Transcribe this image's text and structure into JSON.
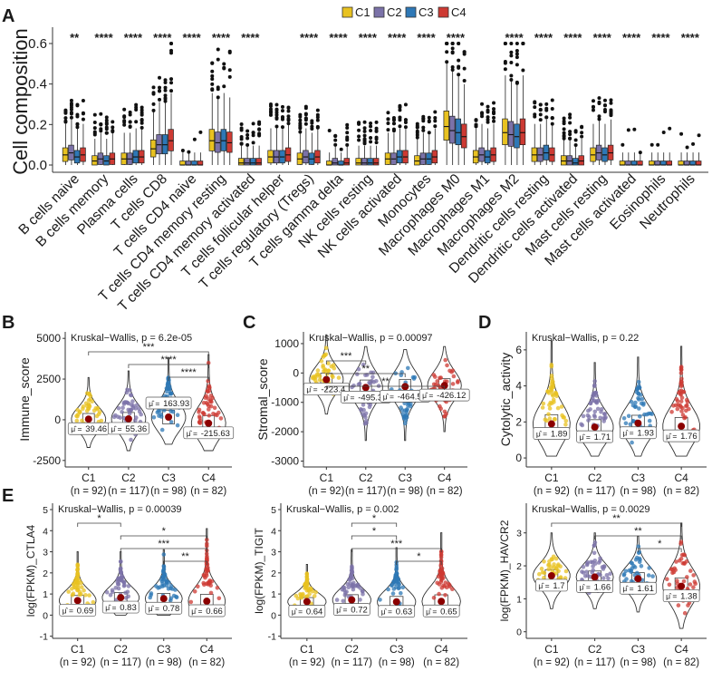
{
  "colors": {
    "C1": "#E8C220",
    "C2": "#7B72A8",
    "C3": "#2E78B6",
    "C4": "#CD3A33"
  },
  "chart_data": [
    {
      "panel": "A",
      "type": "box",
      "ylabel": "Cell composition",
      "ylim": [
        0,
        0.65
      ],
      "yticks": [
        "0.0",
        "0.2",
        "0.4",
        "0.6"
      ],
      "ytick_values": [
        0,
        0.2,
        0.4,
        0.6
      ],
      "legend": [
        "C1",
        "C2",
        "C3",
        "C4"
      ],
      "categories": [
        "B cells naive",
        "B cells memory",
        "Plasma cells",
        "T cells CD8",
        "T cells CD4 naive",
        "T cells CD4 memory resting",
        "T cells CD4 memory activated",
        "T cells follicular helper",
        "T cells regulatory (Tregs)",
        "T cells gamma delta",
        "NK cells resting",
        "NK cells activated",
        "Monocytes",
        "Macrophages M0",
        "Macrophages M1",
        "Macrophages M2",
        "Dendritic cells resting",
        "Dendritic cells activated",
        "Mast cells resting",
        "Mast cells activated",
        "Eosinophils",
        "Neutrophils"
      ],
      "significance": [
        "**",
        "****",
        "****",
        "****",
        "****",
        "****",
        "****",
        "",
        "****",
        "****",
        "****",
        "****",
        "****",
        "****",
        "",
        "****",
        "****",
        "****",
        "****",
        "****",
        "****",
        "****"
      ],
      "medians": [
        [
          0.05,
          0.06,
          0.04,
          0.05
        ],
        [
          0.02,
          0.03,
          0.02,
          0.03
        ],
        [
          0.03,
          0.03,
          0.04,
          0.04
        ],
        [
          0.08,
          0.1,
          0.1,
          0.12
        ],
        [
          0,
          0,
          0,
          0
        ],
        [
          0.12,
          0.11,
          0.12,
          0.11
        ],
        [
          0.01,
          0.01,
          0.01,
          0.01
        ],
        [
          0.04,
          0.04,
          0.04,
          0.05
        ],
        [
          0.03,
          0.04,
          0.03,
          0.04
        ],
        [
          0,
          0.01,
          0,
          0.01
        ],
        [
          0.01,
          0.01,
          0.01,
          0.01
        ],
        [
          0.03,
          0.03,
          0.04,
          0.04
        ],
        [
          0.02,
          0.03,
          0.03,
          0.04
        ],
        [
          0.19,
          0.17,
          0.16,
          0.14
        ],
        [
          0.04,
          0.05,
          0.04,
          0.05
        ],
        [
          0.16,
          0.15,
          0.14,
          0.16
        ],
        [
          0.05,
          0.05,
          0.06,
          0.05
        ],
        [
          0.02,
          0.02,
          0.01,
          0.02
        ],
        [
          0.05,
          0.06,
          0.05,
          0.06
        ],
        [
          0,
          0,
          0,
          0
        ],
        [
          0,
          0,
          0,
          0
        ],
        [
          0,
          0,
          0,
          0
        ]
      ]
    },
    {
      "panel": "B",
      "type": "violin",
      "ylabel": "Immune_score",
      "ylim": [
        -2900,
        5400
      ],
      "yticks": [
        -2500,
        0,
        2500,
        5000
      ],
      "kruskal": "Kruskal−Wallis, p = 6.2e-05",
      "groups": [
        "C1",
        "C2",
        "C3",
        "C4"
      ],
      "counts": [
        "(n = 92)",
        "(n = 117)",
        "(n = 98)",
        "(n = 82)"
      ],
      "means": [
        39.46,
        55.36,
        163.93,
        -215.63
      ],
      "mean_labels": [
        "39.46",
        "55.36",
        "163.93",
        "-215.63"
      ],
      "brackets": [
        {
          "from": 1,
          "to": 4,
          "label": "***"
        },
        {
          "from": 2,
          "to": 4,
          "label": "****"
        },
        {
          "from": 3,
          "to": 4,
          "label": "****"
        }
      ],
      "range": [
        [
          -1700,
          2600
        ],
        [
          -1900,
          3000
        ],
        [
          -1500,
          3800
        ],
        [
          -1900,
          4000
        ]
      ]
    },
    {
      "panel": "C",
      "type": "violin",
      "ylabel": "Stromal_score",
      "ylim": [
        -3200,
        1400
      ],
      "yticks": [
        -3000,
        -2000,
        -1000,
        0,
        1000
      ],
      "kruskal": "Kruskal−Wallis, p = 0.00097",
      "groups": [
        "C1",
        "C2",
        "C3",
        "C4"
      ],
      "counts": [
        "(n = 92)",
        "(n = 117)",
        "(n = 98)",
        "(n = 82)"
      ],
      "means": [
        -223.4,
        -495.33,
        -464.54,
        -426.12
      ],
      "mean_labels": [
        "-223.4",
        "-495.33",
        "-464.54",
        "-426.12"
      ],
      "brackets": [
        {
          "from": 1,
          "to": 2,
          "label": "***"
        },
        {
          "from": 1,
          "to": 3,
          "label": "**"
        },
        {
          "from": 1,
          "to": 4,
          "label": "**"
        }
      ],
      "range": [
        [
          -1400,
          1300
        ],
        [
          -2300,
          900
        ],
        [
          -2300,
          800
        ],
        [
          -2000,
          900
        ]
      ]
    },
    {
      "panel": "D",
      "type": "violin",
      "ylabel": "Cytolytic_activity",
      "ylim": [
        -0.5,
        7.0
      ],
      "yticks": [
        0,
        2,
        4,
        6
      ],
      "kruskal": "Kruskal−Wallis, p = 0.22",
      "groups": [
        "C1",
        "C2",
        "C3",
        "C4"
      ],
      "counts": [
        "(n = 92)",
        "(n = 117)",
        "(n = 98)",
        "(n = 82)"
      ],
      "means": [
        1.89,
        1.71,
        1.93,
        1.76
      ],
      "mean_labels": [
        "1.89",
        "1.71",
        "1.93",
        "1.76"
      ],
      "brackets": [],
      "range": [
        [
          0.1,
          6.5
        ],
        [
          0.1,
          5.3
        ],
        [
          0.1,
          5.6
        ],
        [
          0.1,
          6.2
        ]
      ]
    },
    {
      "panel": "E1",
      "type": "violin",
      "ylabel": "log(FPKM)_CTLA4",
      "ylim": [
        -1.1,
        5.3
      ],
      "yticks": [
        -1,
        0,
        1,
        2,
        3,
        4,
        5
      ],
      "kruskal": "Kruskal−Wallis, p = 0.00039",
      "groups": [
        "C1",
        "C2",
        "C3",
        "C4"
      ],
      "counts": [
        "(n = 92)",
        "(n = 117)",
        "(n = 98)",
        "(n = 82)"
      ],
      "means": [
        0.69,
        0.83,
        0.78,
        0.66
      ],
      "mean_labels": [
        "0.69",
        "0.83",
        "0.78",
        "0.66"
      ],
      "brackets": [
        {
          "from": 1,
          "to": 2,
          "label": "*"
        },
        {
          "from": 2,
          "to": 4,
          "label": "*"
        },
        {
          "from": 2,
          "to": 4,
          "label": "***"
        },
        {
          "from": 3,
          "to": 4,
          "label": "**"
        }
      ],
      "range": [
        [
          0,
          3.0
        ],
        [
          0,
          3.0
        ],
        [
          0,
          3.1
        ],
        [
          0,
          4.1
        ]
      ]
    },
    {
      "panel": "E2",
      "type": "violin",
      "ylabel": "log(FPKM)_TIGIT",
      "ylim": [
        -1.1,
        5.3
      ],
      "yticks": [
        -1,
        0,
        1,
        2,
        3,
        4,
        5
      ],
      "kruskal": "Kruskal−Wallis, p = 0.002",
      "groups": [
        "C1",
        "C2",
        "C3",
        "C4"
      ],
      "counts": [
        "(n = 92)",
        "(n = 117)",
        "(n = 98)",
        "(n = 82)"
      ],
      "means": [
        0.64,
        0.72,
        0.63,
        0.65
      ],
      "mean_labels": [
        "0.64",
        "0.72",
        "0.63",
        "0.65"
      ],
      "brackets": [
        {
          "from": 2,
          "to": 3,
          "label": "*"
        },
        {
          "from": 2,
          "to": 3,
          "label": "*"
        },
        {
          "from": 2,
          "to": 4,
          "label": "***"
        },
        {
          "from": 3,
          "to": 4,
          "label": "*"
        }
      ],
      "range": [
        [
          0,
          2.4
        ],
        [
          0,
          3.1
        ],
        [
          0,
          3.2
        ],
        [
          0,
          3.9
        ]
      ]
    },
    {
      "panel": "E3",
      "type": "violin",
      "ylabel": "log(FPKM)_HAVCR2",
      "ylim": [
        -0.2,
        3.9
      ],
      "yticks": [
        0,
        1,
        2,
        3
      ],
      "kruskal": "Kruskal−Wallis, p = 0.0029",
      "groups": [
        "C1",
        "C2",
        "C3",
        "C4"
      ],
      "counts": [
        "(n = 92)",
        "(n = 117)",
        "(n = 98)",
        "(n = 82)"
      ],
      "means": [
        1.7,
        1.66,
        1.61,
        1.38
      ],
      "mean_labels": [
        "1.7",
        "1.66",
        "1.61",
        "1.38"
      ],
      "brackets": [
        {
          "from": 1,
          "to": 4,
          "label": "**"
        },
        {
          "from": 2,
          "to": 4,
          "label": "**"
        },
        {
          "from": 3,
          "to": 4,
          "label": "*"
        }
      ],
      "range": [
        [
          0.7,
          3.0
        ],
        [
          0.7,
          3.0
        ],
        [
          0.6,
          2.9
        ],
        [
          0.1,
          3.3
        ]
      ]
    }
  ],
  "panel_letters": {
    "A": "A",
    "B": "B",
    "C": "C",
    "D": "D",
    "E": "E"
  },
  "mu_symbol": "μ̂ ="
}
